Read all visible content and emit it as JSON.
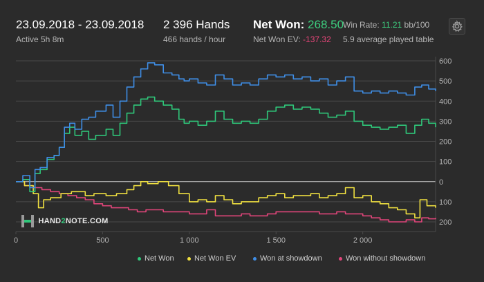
{
  "header": {
    "date_range": "23.09.2018 - 23.09.2018",
    "active": "Active 5h 8m",
    "hands": "2 396 Hands",
    "hands_rate": "466 hands / hour",
    "net_won_label": "Net Won:",
    "net_won_value": "268.50",
    "net_won_ev_label": "Net Won  EV:",
    "net_won_ev_value": "-137.32",
    "win_rate_label": "Win Rate:",
    "win_rate_value": "11.21",
    "win_rate_unit": "bb/100",
    "avg_tables": "5.9 average played table"
  },
  "logo": {
    "text_a": "HAND",
    "text_b": "2",
    "text_c": "NOTE.COM"
  },
  "colors": {
    "net_won": "#2fc77a",
    "net_won_ev": "#f0e040",
    "showdown": "#3f8ee6",
    "non_showdown": "#e0457a",
    "grid": "#4a4a4a",
    "zero_line": "#cfcfcf"
  },
  "chart_data": {
    "type": "line",
    "xlim": [
      0,
      2420
    ],
    "ylim": [
      -220,
      610
    ],
    "x_ticks": [
      0,
      500,
      1000,
      1500,
      2000
    ],
    "x_tick_labels": [
      "0",
      "500",
      "1 000",
      "1 500",
      "2 000"
    ],
    "y_ticks": [
      600,
      500,
      400,
      300,
      200,
      100,
      0,
      -100,
      -200
    ],
    "y_tick_labels": [
      "600",
      "500",
      "400",
      "300",
      "200",
      "100",
      "0",
      "100",
      "200"
    ],
    "legend": [
      "Net Won",
      "Net Won  EV",
      "Won at showdown",
      "Won without showdown"
    ],
    "series": [
      {
        "name": "Net Won",
        "color": "#2fc77a",
        "points": [
          [
            0,
            0
          ],
          [
            40,
            10
          ],
          [
            80,
            -50
          ],
          [
            110,
            40
          ],
          [
            140,
            60
          ],
          [
            180,
            110
          ],
          [
            220,
            130
          ],
          [
            250,
            170
          ],
          [
            280,
            240
          ],
          [
            310,
            270
          ],
          [
            340,
            230
          ],
          [
            380,
            250
          ],
          [
            420,
            210
          ],
          [
            460,
            230
          ],
          [
            520,
            260
          ],
          [
            560,
            230
          ],
          [
            600,
            290
          ],
          [
            640,
            340
          ],
          [
            680,
            380
          ],
          [
            720,
            410
          ],
          [
            760,
            420
          ],
          [
            800,
            400
          ],
          [
            850,
            380
          ],
          [
            900,
            360
          ],
          [
            940,
            310
          ],
          [
            970,
            290
          ],
          [
            1000,
            300
          ],
          [
            1050,
            280
          ],
          [
            1100,
            300
          ],
          [
            1150,
            350
          ],
          [
            1200,
            310
          ],
          [
            1250,
            290
          ],
          [
            1300,
            300
          ],
          [
            1350,
            290
          ],
          [
            1400,
            310
          ],
          [
            1450,
            350
          ],
          [
            1500,
            370
          ],
          [
            1550,
            380
          ],
          [
            1600,
            360
          ],
          [
            1650,
            370
          ],
          [
            1700,
            360
          ],
          [
            1750,
            340
          ],
          [
            1800,
            320
          ],
          [
            1850,
            330
          ],
          [
            1900,
            350
          ],
          [
            1950,
            300
          ],
          [
            2000,
            280
          ],
          [
            2050,
            270
          ],
          [
            2100,
            260
          ],
          [
            2150,
            270
          ],
          [
            2200,
            280
          ],
          [
            2250,
            240
          ],
          [
            2300,
            280
          ],
          [
            2340,
            310
          ],
          [
            2380,
            290
          ],
          [
            2420,
            270
          ]
        ]
      },
      {
        "name": "Net Won  EV",
        "color": "#f0e040",
        "points": [
          [
            0,
            0
          ],
          [
            50,
            -20
          ],
          [
            100,
            -60
          ],
          [
            130,
            -130
          ],
          [
            160,
            -90
          ],
          [
            200,
            -80
          ],
          [
            260,
            -60
          ],
          [
            320,
            -50
          ],
          [
            400,
            -70
          ],
          [
            450,
            -60
          ],
          [
            520,
            -70
          ],
          [
            580,
            -60
          ],
          [
            640,
            -40
          ],
          [
            680,
            -20
          ],
          [
            720,
            0
          ],
          [
            760,
            -10
          ],
          [
            820,
            0
          ],
          [
            880,
            -20
          ],
          [
            940,
            -60
          ],
          [
            1000,
            -100
          ],
          [
            1050,
            -90
          ],
          [
            1100,
            -100
          ],
          [
            1150,
            -70
          ],
          [
            1200,
            -90
          ],
          [
            1250,
            -110
          ],
          [
            1300,
            -100
          ],
          [
            1400,
            -80
          ],
          [
            1450,
            -70
          ],
          [
            1500,
            -60
          ],
          [
            1550,
            -80
          ],
          [
            1600,
            -70
          ],
          [
            1700,
            -60
          ],
          [
            1750,
            -80
          ],
          [
            1800,
            -70
          ],
          [
            1850,
            -60
          ],
          [
            1900,
            -30
          ],
          [
            1950,
            -80
          ],
          [
            2000,
            -70
          ],
          [
            2050,
            -100
          ],
          [
            2100,
            -110
          ],
          [
            2150,
            -130
          ],
          [
            2200,
            -140
          ],
          [
            2250,
            -160
          ],
          [
            2300,
            -180
          ],
          [
            2330,
            -90
          ],
          [
            2370,
            -120
          ],
          [
            2420,
            -130
          ]
        ]
      },
      {
        "name": "Won at showdown",
        "color": "#3f8ee6",
        "points": [
          [
            0,
            0
          ],
          [
            40,
            30
          ],
          [
            80,
            -30
          ],
          [
            110,
            60
          ],
          [
            140,
            70
          ],
          [
            180,
            120
          ],
          [
            220,
            130
          ],
          [
            250,
            170
          ],
          [
            280,
            270
          ],
          [
            310,
            290
          ],
          [
            340,
            260
          ],
          [
            380,
            310
          ],
          [
            420,
            320
          ],
          [
            460,
            350
          ],
          [
            520,
            380
          ],
          [
            560,
            320
          ],
          [
            600,
            400
          ],
          [
            640,
            470
          ],
          [
            680,
            520
          ],
          [
            720,
            560
          ],
          [
            760,
            590
          ],
          [
            800,
            580
          ],
          [
            850,
            540
          ],
          [
            900,
            530
          ],
          [
            940,
            510
          ],
          [
            970,
            500
          ],
          [
            1000,
            510
          ],
          [
            1050,
            490
          ],
          [
            1100,
            480
          ],
          [
            1150,
            530
          ],
          [
            1200,
            510
          ],
          [
            1250,
            480
          ],
          [
            1300,
            490
          ],
          [
            1350,
            480
          ],
          [
            1400,
            510
          ],
          [
            1450,
            530
          ],
          [
            1500,
            520
          ],
          [
            1550,
            530
          ],
          [
            1600,
            510
          ],
          [
            1650,
            520
          ],
          [
            1700,
            500
          ],
          [
            1750,
            510
          ],
          [
            1800,
            480
          ],
          [
            1850,
            500
          ],
          [
            1900,
            520
          ],
          [
            1950,
            450
          ],
          [
            2000,
            440
          ],
          [
            2050,
            450
          ],
          [
            2100,
            440
          ],
          [
            2150,
            450
          ],
          [
            2200,
            440
          ],
          [
            2250,
            430
          ],
          [
            2300,
            470
          ],
          [
            2340,
            480
          ],
          [
            2380,
            460
          ],
          [
            2420,
            450
          ]
        ]
      },
      {
        "name": "Won without showdown",
        "color": "#e0457a",
        "points": [
          [
            0,
            0
          ],
          [
            50,
            -20
          ],
          [
            100,
            -30
          ],
          [
            150,
            -40
          ],
          [
            200,
            -50
          ],
          [
            250,
            -60
          ],
          [
            300,
            -70
          ],
          [
            350,
            -80
          ],
          [
            400,
            -90
          ],
          [
            450,
            -110
          ],
          [
            500,
            -120
          ],
          [
            550,
            -130
          ],
          [
            600,
            -130
          ],
          [
            650,
            -140
          ],
          [
            700,
            -150
          ],
          [
            750,
            -140
          ],
          [
            800,
            -140
          ],
          [
            850,
            -150
          ],
          [
            900,
            -150
          ],
          [
            950,
            -150
          ],
          [
            1000,
            -160
          ],
          [
            1050,
            -160
          ],
          [
            1100,
            -140
          ],
          [
            1150,
            -170
          ],
          [
            1200,
            -170
          ],
          [
            1250,
            -170
          ],
          [
            1300,
            -160
          ],
          [
            1350,
            -170
          ],
          [
            1400,
            -170
          ],
          [
            1450,
            -160
          ],
          [
            1500,
            -150
          ],
          [
            1550,
            -150
          ],
          [
            1600,
            -150
          ],
          [
            1650,
            -150
          ],
          [
            1700,
            -150
          ],
          [
            1750,
            -160
          ],
          [
            1800,
            -160
          ],
          [
            1850,
            -150
          ],
          [
            1900,
            -160
          ],
          [
            1950,
            -160
          ],
          [
            2000,
            -170
          ],
          [
            2050,
            -180
          ],
          [
            2100,
            -190
          ],
          [
            2150,
            -200
          ],
          [
            2200,
            -200
          ],
          [
            2250,
            -190
          ],
          [
            2300,
            -200
          ],
          [
            2340,
            -180
          ],
          [
            2380,
            -185
          ],
          [
            2420,
            -180
          ]
        ]
      }
    ]
  }
}
